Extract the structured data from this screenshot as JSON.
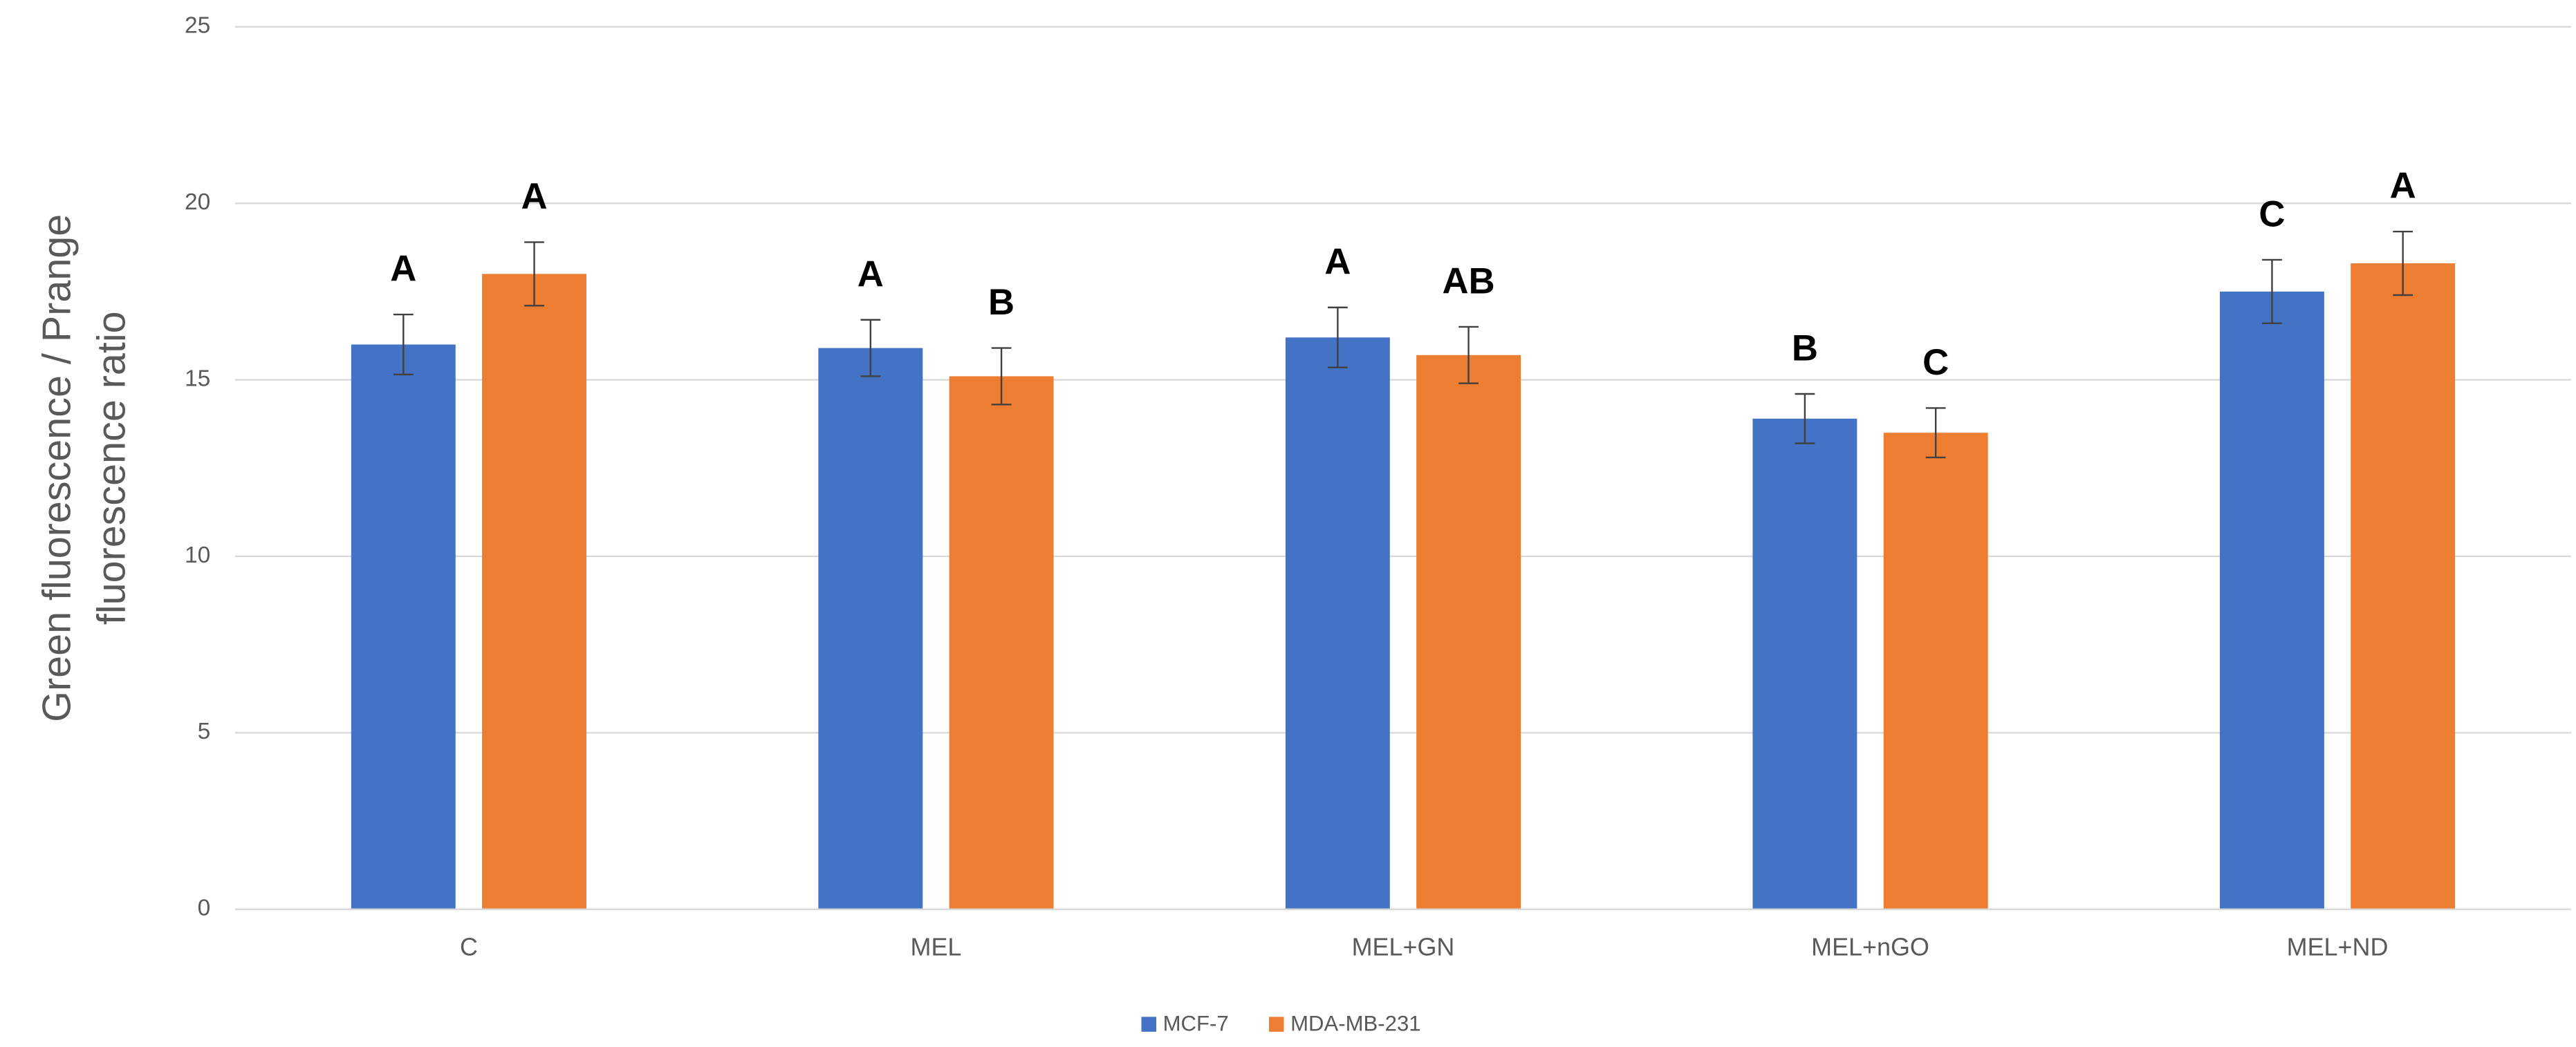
{
  "chart_data": {
    "type": "bar",
    "y_label": [
      "Green fluorescence / Prange",
      "fluorescence  ratio"
    ],
    "categories": [
      "C",
      "MEL",
      "MEL+GN",
      "MEL+nGO",
      "MEL+ND"
    ],
    "series": [
      {
        "name": "MCF-7",
        "color": "#4472c4",
        "values": [
          16.0,
          15.9,
          16.2,
          13.9,
          17.5
        ],
        "errors": [
          0.85,
          0.8,
          0.85,
          0.7,
          0.9
        ],
        "letters": [
          "A",
          "A",
          "A",
          "B",
          "C"
        ]
      },
      {
        "name": "MDA-MB-231",
        "color": "#ed7d31",
        "values": [
          18.0,
          15.1,
          15.7,
          13.5,
          18.3
        ],
        "errors": [
          0.9,
          0.8,
          0.8,
          0.7,
          0.9
        ],
        "letters": [
          "A",
          "B",
          "AB",
          "C",
          "A"
        ]
      }
    ],
    "ylim": [
      0,
      25
    ],
    "yticks": [
      0,
      5,
      10,
      15,
      20,
      25
    ],
    "grid": true,
    "legend": "bottom"
  }
}
